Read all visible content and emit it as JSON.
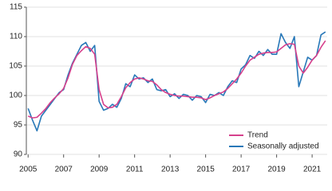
{
  "chart_data": {
    "type": "line",
    "x": [
      2005,
      2005.25,
      2005.5,
      2005.75,
      2006,
      2006.25,
      2006.5,
      2006.75,
      2007,
      2007.25,
      2007.5,
      2007.75,
      2008,
      2008.25,
      2008.5,
      2008.75,
      2009,
      2009.25,
      2009.5,
      2009.75,
      2010,
      2010.25,
      2010.5,
      2010.75,
      2011,
      2011.25,
      2011.5,
      2011.75,
      2012,
      2012.25,
      2012.5,
      2012.75,
      2013,
      2013.25,
      2013.5,
      2013.75,
      2014,
      2014.25,
      2014.5,
      2014.75,
      2015,
      2015.25,
      2015.5,
      2015.75,
      2016,
      2016.25,
      2016.5,
      2016.75,
      2017,
      2017.25,
      2017.5,
      2017.75,
      2018,
      2018.25,
      2018.5,
      2018.75,
      2019,
      2019.25,
      2019.5,
      2019.75,
      2020,
      2020.25,
      2020.5,
      2020.75,
      2021,
      2021.25,
      2021.5,
      2021.75
    ],
    "series": [
      {
        "name": "Trend",
        "color": "#d6408c",
        "values": [
          96.5,
          96.2,
          96.3,
          97.0,
          97.8,
          98.8,
          99.6,
          100.3,
          101.2,
          103.0,
          105.3,
          106.8,
          107.6,
          108.3,
          108.0,
          107.0,
          101.0,
          98.5,
          97.9,
          98.0,
          98.5,
          99.8,
          101.3,
          102.2,
          102.8,
          103.0,
          102.8,
          102.5,
          102.4,
          101.8,
          101.0,
          100.5,
          100.2,
          100.0,
          99.9,
          99.9,
          99.8,
          99.7,
          99.7,
          99.6,
          99.3,
          99.6,
          100.0,
          100.3,
          100.6,
          101.2,
          102.0,
          102.8,
          103.8,
          105.0,
          106.0,
          106.5,
          107.0,
          107.2,
          107.3,
          107.3,
          107.4,
          108.0,
          108.6,
          108.8,
          108.7,
          105.0,
          103.8,
          104.8,
          106.0,
          106.8,
          108.2,
          109.3
        ]
      },
      {
        "name": "Seasonally adjusted",
        "color": "#2878b8",
        "values": [
          97.8,
          95.8,
          94.0,
          96.5,
          97.5,
          98.5,
          99.5,
          100.5,
          101.0,
          103.5,
          105.5,
          107.0,
          108.5,
          109.0,
          107.5,
          108.5,
          99.0,
          97.5,
          97.8,
          98.5,
          98.0,
          99.5,
          102.0,
          101.5,
          103.5,
          102.8,
          103.0,
          102.2,
          102.8,
          101.0,
          100.8,
          101.0,
          99.8,
          100.3,
          99.5,
          100.2,
          100.0,
          99.2,
          100.0,
          99.8,
          98.8,
          100.2,
          100.0,
          100.5,
          100.0,
          101.5,
          102.5,
          102.2,
          104.5,
          105.2,
          106.8,
          106.3,
          107.5,
          106.8,
          107.8,
          107.0,
          107.0,
          110.5,
          109.0,
          108.0,
          110.0,
          101.5,
          104.0,
          106.5,
          106.0,
          106.8,
          110.3,
          110.8
        ]
      }
    ],
    "xlim": [
      2004.9,
      2021.85
    ],
    "xticks": [
      2005,
      2007,
      2009,
      2011,
      2013,
      2015,
      2017,
      2019,
      2021
    ],
    "ylim": [
      90,
      115
    ],
    "yticks": [
      90,
      95,
      100,
      105,
      110,
      115
    ],
    "grid": true,
    "legend": "lower right"
  }
}
